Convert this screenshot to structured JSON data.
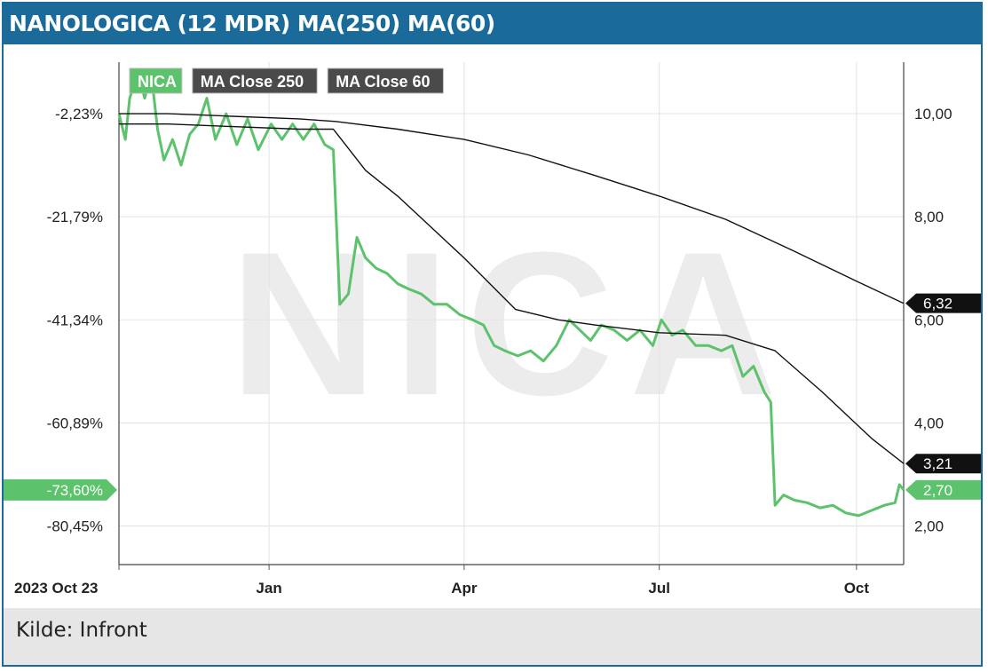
{
  "title": "NANOLOGICA (12 MDR) MA(250) MA(60)",
  "source": "Kilde: Infront",
  "chart_data": {
    "type": "line",
    "watermark": "NICA",
    "x_start": "2023-10-23",
    "x_end": "2024-10-23",
    "x_ticks": [
      {
        "label": "2023 Oct 23",
        "date": "2023-10-23"
      },
      {
        "label": "Jan",
        "date": "2024-01-01"
      },
      {
        "label": "Apr",
        "date": "2024-04-01"
      },
      {
        "label": "Jul",
        "date": "2024-07-01"
      },
      {
        "label": "Oct",
        "date": "2024-10-01"
      }
    ],
    "y_right_ticks": [
      "10,00",
      "8,00",
      "6,00",
      "4,00",
      "2,00"
    ],
    "y_left_ticks": [
      "-2,23%",
      "-21,79%",
      "-41,34%",
      "-60,89%",
      "-80,45%"
    ],
    "y_right_range": [
      1.25,
      11.0
    ],
    "grid": true,
    "legend_position": "top-left",
    "colors": {
      "price": "#5cc26c",
      "ma": "#111111",
      "ma_badge": "#111111",
      "legend_ma_bg": "#4a4a4a",
      "frame": "#1a6a9a"
    },
    "series": [
      {
        "name": "NICA",
        "color": "#5cc26c",
        "last_value": "2,70",
        "last_pct": "-73,60%",
        "points": [
          [
            "2023-10-23",
            10.0
          ],
          [
            "2023-10-26",
            9.5
          ],
          [
            "2023-10-28",
            10.3
          ],
          [
            "2023-11-01",
            10.8
          ],
          [
            "2023-11-04",
            10.3
          ],
          [
            "2023-11-07",
            10.8
          ],
          [
            "2023-11-10",
            9.7
          ],
          [
            "2023-11-13",
            9.1
          ],
          [
            "2023-11-17",
            9.5
          ],
          [
            "2023-11-21",
            9.0
          ],
          [
            "2023-11-25",
            9.6
          ],
          [
            "2023-11-29",
            9.8
          ],
          [
            "2023-12-03",
            10.3
          ],
          [
            "2023-12-07",
            9.5
          ],
          [
            "2023-12-12",
            10.0
          ],
          [
            "2023-12-17",
            9.4
          ],
          [
            "2023-12-22",
            9.9
          ],
          [
            "2023-12-27",
            9.3
          ],
          [
            "2024-01-02",
            9.8
          ],
          [
            "2024-01-07",
            9.5
          ],
          [
            "2024-01-12",
            9.8
          ],
          [
            "2024-01-17",
            9.5
          ],
          [
            "2024-01-22",
            9.8
          ],
          [
            "2024-01-27",
            9.4
          ],
          [
            "2024-01-31",
            9.3
          ],
          [
            "2024-02-03",
            6.3
          ],
          [
            "2024-02-07",
            6.5
          ],
          [
            "2024-02-11",
            7.6
          ],
          [
            "2024-02-15",
            7.2
          ],
          [
            "2024-02-20",
            7.0
          ],
          [
            "2024-02-25",
            6.9
          ],
          [
            "2024-03-01",
            6.7
          ],
          [
            "2024-03-06",
            6.6
          ],
          [
            "2024-03-12",
            6.5
          ],
          [
            "2024-03-18",
            6.3
          ],
          [
            "2024-03-24",
            6.3
          ],
          [
            "2024-03-30",
            6.1
          ],
          [
            "2024-04-05",
            6.0
          ],
          [
            "2024-04-10",
            5.9
          ],
          [
            "2024-04-15",
            5.5
          ],
          [
            "2024-04-20",
            5.4
          ],
          [
            "2024-04-26",
            5.3
          ],
          [
            "2024-05-02",
            5.4
          ],
          [
            "2024-05-08",
            5.2
          ],
          [
            "2024-05-14",
            5.5
          ],
          [
            "2024-05-20",
            6.0
          ],
          [
            "2024-05-25",
            5.8
          ],
          [
            "2024-05-30",
            5.6
          ],
          [
            "2024-06-04",
            5.9
          ],
          [
            "2024-06-10",
            5.8
          ],
          [
            "2024-06-16",
            5.6
          ],
          [
            "2024-06-22",
            5.8
          ],
          [
            "2024-06-28",
            5.5
          ],
          [
            "2024-07-02",
            6.0
          ],
          [
            "2024-07-07",
            5.7
          ],
          [
            "2024-07-12",
            5.8
          ],
          [
            "2024-07-18",
            5.5
          ],
          [
            "2024-07-24",
            5.5
          ],
          [
            "2024-07-30",
            5.4
          ],
          [
            "2024-08-04",
            5.5
          ],
          [
            "2024-08-09",
            4.9
          ],
          [
            "2024-08-14",
            5.1
          ],
          [
            "2024-08-19",
            4.6
          ],
          [
            "2024-08-22",
            4.4
          ],
          [
            "2024-08-24",
            2.4
          ],
          [
            "2024-08-28",
            2.6
          ],
          [
            "2024-09-02",
            2.5
          ],
          [
            "2024-09-08",
            2.45
          ],
          [
            "2024-09-14",
            2.35
          ],
          [
            "2024-09-20",
            2.4
          ],
          [
            "2024-09-26",
            2.25
          ],
          [
            "2024-10-02",
            2.2
          ],
          [
            "2024-10-08",
            2.3
          ],
          [
            "2024-10-14",
            2.4
          ],
          [
            "2024-10-19",
            2.45
          ],
          [
            "2024-10-21",
            2.8
          ],
          [
            "2024-10-23",
            2.7
          ]
        ]
      },
      {
        "name": "MA Close 250",
        "color": "#111111",
        "last_value": "6,32",
        "points": [
          [
            "2023-10-23",
            10.0
          ],
          [
            "2023-11-15",
            10.0
          ],
          [
            "2023-12-15",
            9.95
          ],
          [
            "2024-01-15",
            9.9
          ],
          [
            "2024-02-01",
            9.85
          ],
          [
            "2024-03-01",
            9.7
          ],
          [
            "2024-04-01",
            9.5
          ],
          [
            "2024-05-01",
            9.2
          ],
          [
            "2024-06-01",
            8.8
          ],
          [
            "2024-07-01",
            8.4
          ],
          [
            "2024-08-01",
            7.95
          ],
          [
            "2024-09-01",
            7.35
          ],
          [
            "2024-10-01",
            6.75
          ],
          [
            "2024-10-23",
            6.32
          ]
        ]
      },
      {
        "name": "MA Close 60",
        "color": "#111111",
        "last_value": "3,21",
        "points": [
          [
            "2023-10-23",
            9.8
          ],
          [
            "2023-11-15",
            9.8
          ],
          [
            "2023-12-15",
            9.75
          ],
          [
            "2024-01-15",
            9.7
          ],
          [
            "2024-01-31",
            9.7
          ],
          [
            "2024-02-15",
            8.9
          ],
          [
            "2024-03-01",
            8.4
          ],
          [
            "2024-04-01",
            7.2
          ],
          [
            "2024-04-25",
            6.2
          ],
          [
            "2024-05-15",
            6.0
          ],
          [
            "2024-06-01",
            5.9
          ],
          [
            "2024-07-01",
            5.75
          ],
          [
            "2024-08-01",
            5.7
          ],
          [
            "2024-08-24",
            5.4
          ],
          [
            "2024-09-15",
            4.6
          ],
          [
            "2024-10-08",
            3.7
          ],
          [
            "2024-10-23",
            3.21
          ]
        ]
      }
    ]
  }
}
